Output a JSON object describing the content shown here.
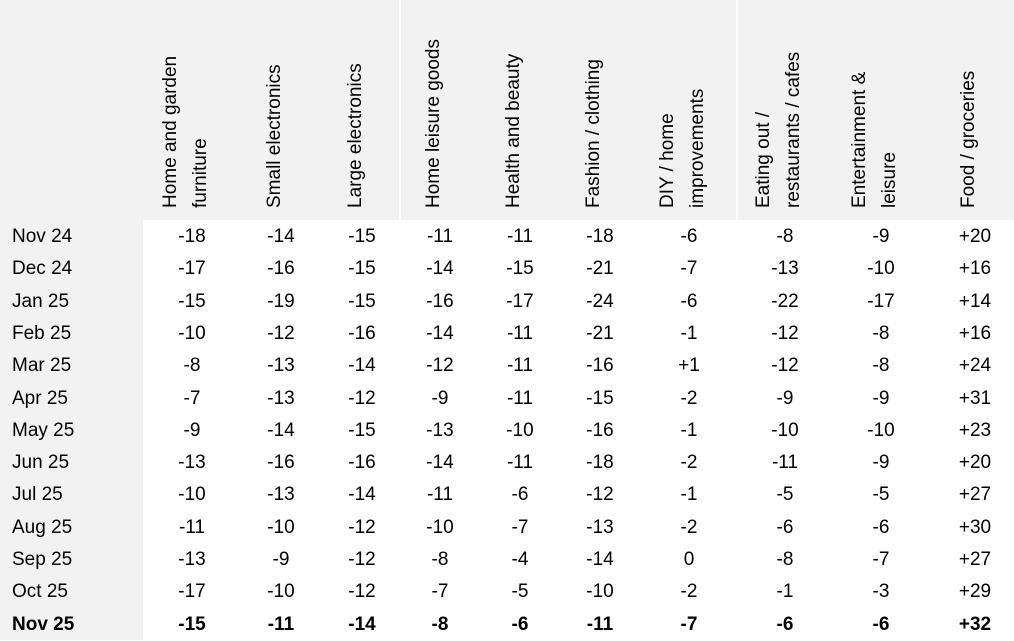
{
  "table": {
    "columns": [
      [
        "Home and garden",
        "furniture"
      ],
      [
        "Small electronics"
      ],
      [
        "Large electronics"
      ],
      [
        "Home leisure goods"
      ],
      [
        "Health and beauty"
      ],
      [
        "Fashion / clothing"
      ],
      [
        "DIY / home",
        "improvements"
      ],
      [
        "Eating out /",
        "restaurants / cafes"
      ],
      [
        "Entertainment &",
        "leisure"
      ],
      [
        "Food / groceries"
      ]
    ],
    "rows": [
      {
        "label": "Nov 24",
        "values": [
          "-18",
          "-14",
          "-15",
          "-11",
          "-11",
          "-18",
          "-6",
          "-8",
          "-9",
          "+20"
        ]
      },
      {
        "label": "Dec 24",
        "values": [
          "-17",
          "-16",
          "-15",
          "-14",
          "-15",
          "-21",
          "-7",
          "-13",
          "-10",
          "+16"
        ]
      },
      {
        "label": "Jan 25",
        "values": [
          "-15",
          "-19",
          "-15",
          "-16",
          "-17",
          "-24",
          "-6",
          "-22",
          "-17",
          "+14"
        ]
      },
      {
        "label": "Feb 25",
        "values": [
          "-10",
          "-12",
          "-16",
          "-14",
          "-11",
          "-21",
          "-1",
          "-12",
          "-8",
          "+16"
        ]
      },
      {
        "label": "Mar 25",
        "values": [
          "-8",
          "-13",
          "-14",
          "-12",
          "-11",
          "-16",
          "+1",
          "-12",
          "-8",
          "+24"
        ]
      },
      {
        "label": "Apr 25",
        "values": [
          "-7",
          "-13",
          "-12",
          "-9",
          "-11",
          "-15",
          "-2",
          "-9",
          "-9",
          "+31"
        ]
      },
      {
        "label": "May 25",
        "values": [
          "-9",
          "-14",
          "-15",
          "-13",
          "-10",
          "-16",
          "-1",
          "-10",
          "-10",
          "+23"
        ]
      },
      {
        "label": "Jun 25",
        "values": [
          "-13",
          "-16",
          "-16",
          "-14",
          "-11",
          "-18",
          "-2",
          "-11",
          "-9",
          "+20"
        ]
      },
      {
        "label": "Jul 25",
        "values": [
          "-10",
          "-13",
          "-14",
          "-11",
          "-6",
          "-12",
          "-1",
          "-5",
          "-5",
          "+27"
        ]
      },
      {
        "label": "Aug 25",
        "values": [
          "-11",
          "-10",
          "-12",
          "-10",
          "-7",
          "-13",
          "-2",
          "-6",
          "-6",
          "+30"
        ]
      },
      {
        "label": "Sep 25",
        "values": [
          "-13",
          "-9",
          "-12",
          "-8",
          "-4",
          "-14",
          "0",
          "-8",
          "-7",
          "+27"
        ]
      },
      {
        "label": "Oct 25",
        "values": [
          "-17",
          "-10",
          "-12",
          "-7",
          "-5",
          "-10",
          "-2",
          "-1",
          "-3",
          "+29"
        ]
      },
      {
        "label": "Nov 25",
        "values": [
          "-15",
          "-11",
          "-14",
          "-8",
          "-6",
          "-11",
          "-7",
          "-6",
          "-6",
          "+32"
        ]
      }
    ]
  }
}
